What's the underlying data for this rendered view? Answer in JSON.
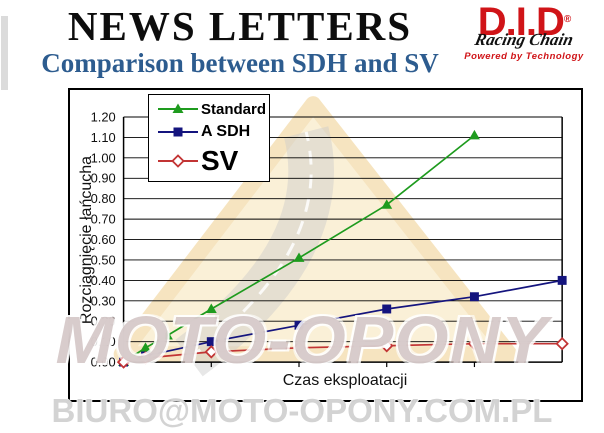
{
  "header": {
    "title": "NEWS LETTERS",
    "subtitle": "Comparison between SDH and SV"
  },
  "logo": {
    "brand": "D.I.D",
    "registered": "®",
    "script": "Racing Chain",
    "tagline": "Powered by Technology",
    "brand_color": "#d01418"
  },
  "watermark": {
    "center_text": "MOTO-OPONY",
    "bottom_text": "BIURO@MOTO-OPONY.COM.PL"
  },
  "chart_data": {
    "type": "line",
    "title": "",
    "xlabel": "Czas eksploatacji",
    "ylabel": "Rozciągnięcie łańcucha",
    "xlim": [
      0,
      5
    ],
    "ylim": [
      0,
      1.2
    ],
    "ytick_step": 0.1,
    "ytick_format_decimals": 2,
    "x_ticks": [
      1,
      2,
      3,
      4
    ],
    "x_tick_labels_visible": false,
    "grid": "horizontal",
    "legend_position": "top-left",
    "series": [
      {
        "name": "Standard",
        "color": "#1e9b1e",
        "marker": "triangle",
        "x": [
          0,
          0.25,
          0.5,
          1,
          2,
          3,
          4
        ],
        "y": [
          0.0,
          0.07,
          0.13,
          0.26,
          0.51,
          0.77,
          1.11
        ]
      },
      {
        "name": "A SDH",
        "color": "#14147e",
        "marker": "square",
        "x": [
          0,
          0.25,
          1,
          2,
          3,
          4,
          5
        ],
        "y": [
          0.0,
          0.03,
          0.1,
          0.18,
          0.26,
          0.32,
          0.4
        ]
      },
      {
        "name": "SV",
        "color": "#c23434",
        "marker": "diamond-open",
        "x": [
          0,
          0.25,
          1,
          2,
          3,
          4,
          5
        ],
        "y": [
          0.0,
          0.02,
          0.05,
          0.07,
          0.08,
          0.09,
          0.09
        ]
      }
    ]
  }
}
